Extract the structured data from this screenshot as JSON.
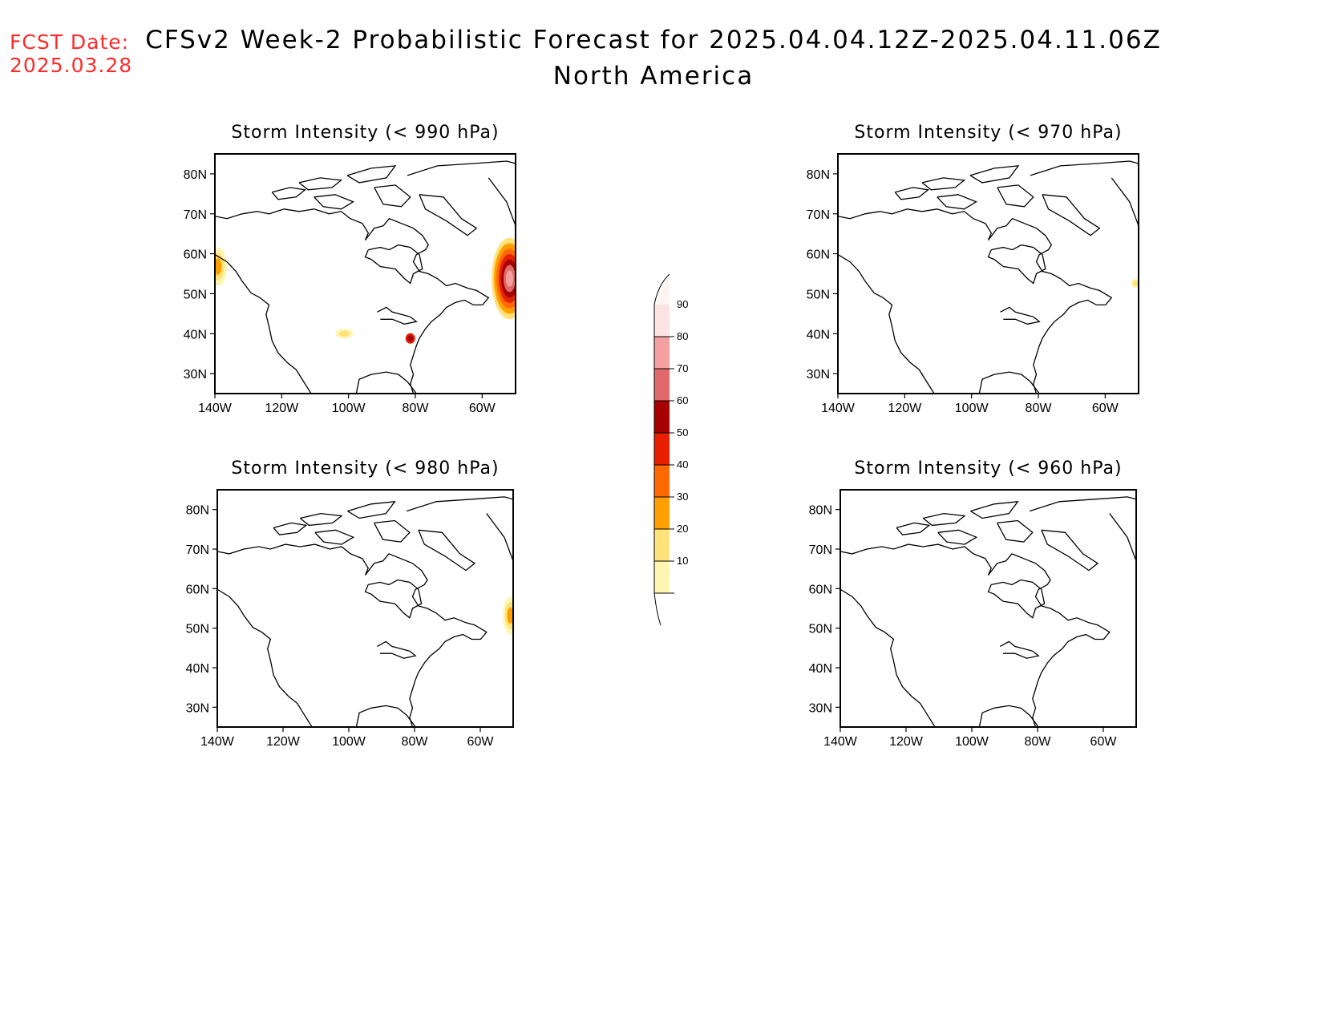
{
  "header": {
    "fcst_label": "FCST Date:",
    "fcst_date": "2025.03.28",
    "title": "CFSv2 Week-2 Probabilistic Forecast for 2025.04.04.12Z-2025.04.11.06Z",
    "subtitle": "North America"
  },
  "axes": {
    "lat_ticks": [
      "80N",
      "70N",
      "60N",
      "50N",
      "40N",
      "30N"
    ],
    "lon_ticks": [
      "140W",
      "120W",
      "100W",
      "80W",
      "60W"
    ]
  },
  "panels": [
    {
      "id": "p990",
      "title": "Storm Intensity (< 990 hPa)"
    },
    {
      "id": "p970",
      "title": "Storm Intensity (< 970 hPa)"
    },
    {
      "id": "p980",
      "title": "Storm Intensity (< 980 hPa)"
    },
    {
      "id": "p960",
      "title": "Storm Intensity (< 960 hPa)"
    }
  ],
  "colorbar": {
    "levels": [
      "10",
      "20",
      "30",
      "40",
      "50",
      "60",
      "70",
      "80",
      "90"
    ],
    "colors": [
      "#fff6b4",
      "#ffe27a",
      "#ff9f00",
      "#ff6a00",
      "#e82000",
      "#a60000",
      "#e06a6a",
      "#f4a0a0",
      "#fde4e4"
    ]
  }
}
